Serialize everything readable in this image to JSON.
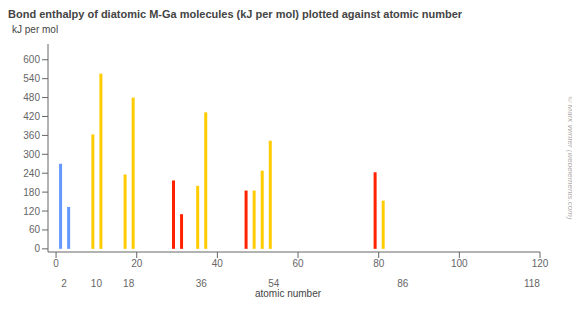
{
  "chart_data": {
    "type": "bar",
    "title": "Bond enthalpy of diatomic M-Ga molecules (kJ per mol) plotted against atomic number",
    "ylabel": "kJ per mol",
    "xlabel": "atomic number",
    "x": [
      1,
      3,
      9,
      11,
      17,
      19,
      29,
      31,
      35,
      37,
      47,
      49,
      51,
      53,
      79,
      81
    ],
    "values": [
      270,
      133,
      363,
      556,
      236,
      480,
      217,
      110,
      200,
      433,
      185,
      185,
      248,
      343,
      243,
      153
    ],
    "colors": [
      "#6699ff",
      "#6699ff",
      "#ffcc00",
      "#ffcc00",
      "#ffcc00",
      "#ffcc00",
      "#ff2200",
      "#ff2200",
      "#ffcc00",
      "#ffcc00",
      "#ff2200",
      "#ffcc00",
      "#ffcc00",
      "#ffcc00",
      "#ff2200",
      "#ffcc00"
    ],
    "xlim": [
      -2,
      120
    ],
    "xticks": [
      0,
      20,
      40,
      60,
      80,
      100,
      120
    ],
    "x2lim": [
      -2,
      120
    ],
    "x2ticks": [
      2,
      10,
      18,
      36,
      54,
      86,
      118
    ],
    "ylim": [
      -10,
      650
    ],
    "yticks": [
      0,
      60,
      120,
      180,
      240,
      300,
      360,
      420,
      480,
      540,
      600
    ],
    "grid": false,
    "annotations": [
      {
        "text": "© Mark Winter (webelements.com)"
      }
    ]
  }
}
